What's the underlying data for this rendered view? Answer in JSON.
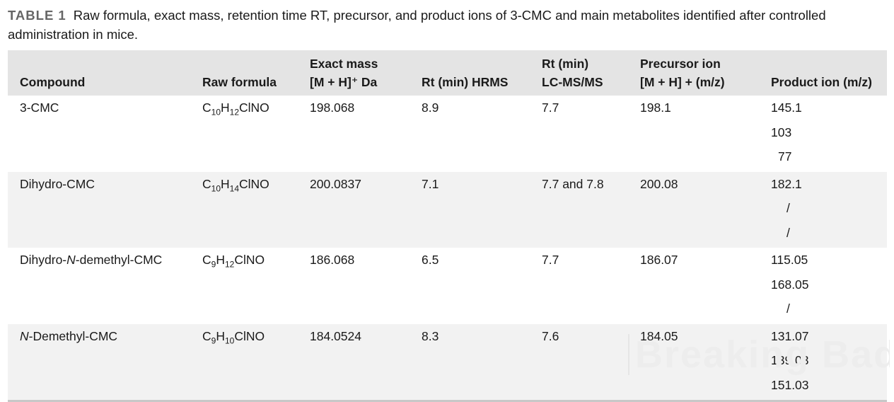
{
  "caption": {
    "label": "TABLE 1",
    "text": "Raw formula, exact mass, retention time RT, precursor, and product ions of 3-CMC and main metabolites identified after controlled administration in mice."
  },
  "headers": {
    "compound": "Compound",
    "formula": "Raw formula",
    "mass_l1": "Exact mass",
    "mass_l2": "[M + H]⁺ Da",
    "rt_hrms": "Rt (min) HRMS",
    "rt_lcms_l1": "Rt (min)",
    "rt_lcms_l2": "LC-MS/MS",
    "precursor_l1": "Precursor ion",
    "precursor_l2": "[M + H] + (m/z)",
    "product": "Product ion (m/z)"
  },
  "rows": [
    {
      "compound": "3-CMC",
      "formula": {
        "a": "C",
        "b": "10",
        "c": "H",
        "d": "12",
        "e": "ClNO"
      },
      "mass": "198.068",
      "rt_hrms": "8.9",
      "rt_lcms": "7.7",
      "precursor": "198.1",
      "ions": [
        "145.1",
        "103",
        "77"
      ]
    },
    {
      "compound": "Dihydro-CMC",
      "formula": {
        "a": "C",
        "b": "10",
        "c": "H",
        "d": "14",
        "e": "ClNO"
      },
      "mass": "200.0837",
      "rt_hrms": "7.1",
      "rt_lcms": "7.7 and 7.8",
      "precursor": "200.08",
      "ions": [
        "182.1",
        "/",
        "/"
      ]
    },
    {
      "compound_pre": "Dihydro-",
      "compound_it": "N",
      "compound_post": "-demethyl-CMC",
      "formula": {
        "a": "C",
        "b": "9",
        "c": "H",
        "d": "12",
        "e": "ClNO"
      },
      "mass": "186.068",
      "rt_hrms": "6.5",
      "rt_lcms": "7.7",
      "precursor": "186.07",
      "ions": [
        "115.05",
        "168.05",
        "/"
      ]
    },
    {
      "compound_it": "N",
      "compound_post": "-Demethyl-CMC",
      "formula": {
        "a": "C",
        "b": "9",
        "c": "H",
        "d": "10",
        "e": "ClNO"
      },
      "mass": "184.0524",
      "rt_hrms": "8.3",
      "rt_lcms": "7.6",
      "precursor": "184.05",
      "ions": [
        "131.07",
        "139.03",
        "151.03"
      ]
    }
  ],
  "watermark": "Breaking Bad"
}
